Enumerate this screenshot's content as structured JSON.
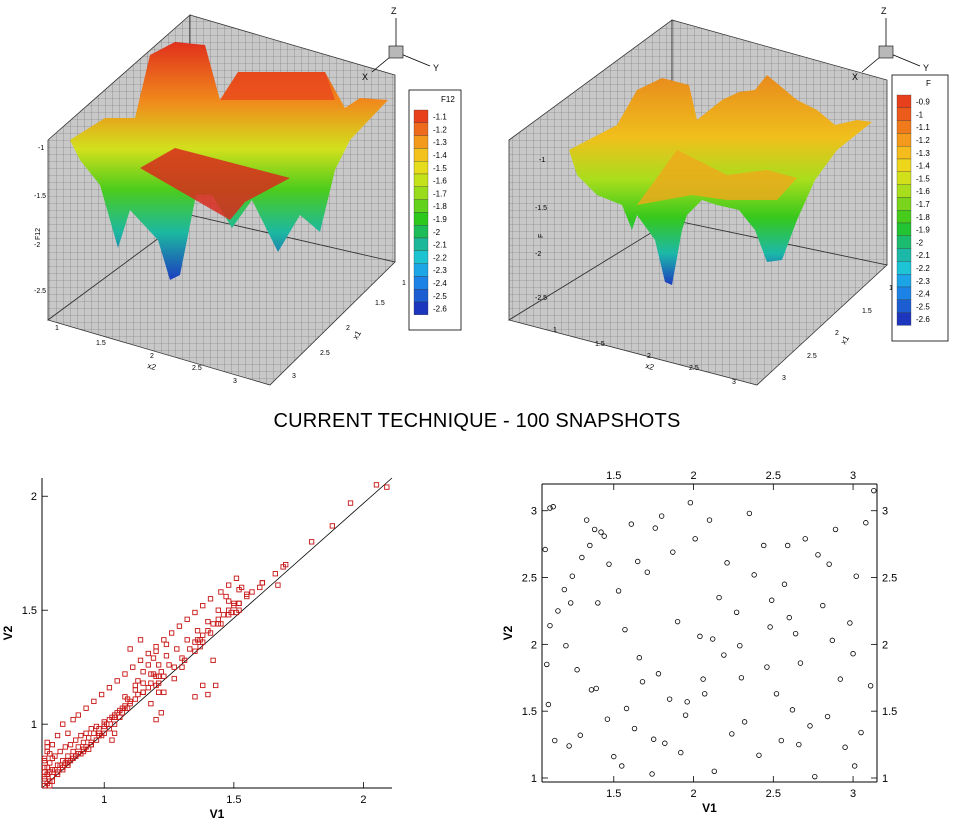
{
  "page_title": "CURRENT TECHNIQUE - 100 SNAPSHOTS",
  "chart_data": [
    {
      "type": "surface",
      "id": "surface-left",
      "xlabel": "x2",
      "ylabel": "x1",
      "zlabel": "F12",
      "x_ticks": [
        "1",
        "1.5",
        "2",
        "2.5",
        "3"
      ],
      "y_ticks": [
        "1",
        "1.5",
        "2",
        "2.5",
        "3"
      ],
      "z_ticks": [
        "-1",
        "-1.5",
        "-2",
        "-2.5"
      ],
      "axis_letters": {
        "z": "Z",
        "x": "X",
        "y": "Y"
      },
      "legend_title": "F12",
      "legend_levels": [
        "-1.1",
        "-1.2",
        "-1.3",
        "-1.4",
        "-1.5",
        "-1.6",
        "-1.7",
        "-1.8",
        "-1.9",
        "-2",
        "-2.1",
        "-2.2",
        "-2.3",
        "-2.4",
        "-2.5",
        "-2.6"
      ],
      "legend_colors": [
        "#e8401c",
        "#ee6a1c",
        "#f39a1c",
        "#f4c21c",
        "#e4dc1c",
        "#c4e21c",
        "#98dc1c",
        "#62d21c",
        "#2cc81c",
        "#1cbc58",
        "#1cb89a",
        "#1cc4d2",
        "#1ca6e6",
        "#1c82e6",
        "#1c5ed2",
        "#1c36be"
      ]
    },
    {
      "type": "surface",
      "id": "surface-right",
      "xlabel": "x2",
      "ylabel": "x1",
      "zlabel": "F",
      "x_ticks": [
        "1",
        "1.5",
        "2",
        "2.5",
        "3"
      ],
      "y_ticks": [
        "1",
        "1.5",
        "2",
        "2.5",
        "3"
      ],
      "z_ticks": [
        "-1",
        "-1.5",
        "-2",
        "-2.5"
      ],
      "axis_letters": {
        "z": "Z",
        "x": "X",
        "y": "Y"
      },
      "legend_title": "F",
      "legend_levels": [
        "-0.9",
        "-1",
        "-1.1",
        "-1.2",
        "-1.3",
        "-1.4",
        "-1.5",
        "-1.6",
        "-1.7",
        "-1.8",
        "-1.9",
        "-2",
        "-2.1",
        "-2.2",
        "-2.3",
        "-2.4",
        "-2.5",
        "-2.6"
      ],
      "legend_colors": [
        "#e8401c",
        "#ec5a1c",
        "#f07a1c",
        "#f39a1c",
        "#f4bc1c",
        "#eed61c",
        "#d2e01c",
        "#a8de1c",
        "#7ad41c",
        "#48cc1c",
        "#22c434",
        "#1cbc70",
        "#1cb8a8",
        "#1cc4d6",
        "#1ca4e6",
        "#1c82e6",
        "#1c5ed2",
        "#1c36be"
      ]
    },
    {
      "type": "scatter",
      "id": "scatter-left",
      "xlabel": "V1",
      "ylabel": "V2",
      "xlim": [
        0.76,
        2.11
      ],
      "ylim": [
        0.72,
        2.08
      ],
      "x_ticks": [
        1,
        1.5,
        2
      ],
      "y_ticks": [
        1,
        1.5,
        2
      ],
      "marker": "square",
      "marker_color": "#c81414",
      "fit_line": {
        "x": [
          0.76,
          2.11
        ],
        "y": [
          0.72,
          2.08
        ]
      },
      "x": [
        2.05,
        2.09,
        1.95,
        1.88,
        1.8,
        1.69,
        1.66,
        1.7,
        1.61,
        1.61,
        1.67,
        1.55,
        1.52,
        1.5,
        1.48,
        1.46,
        1.44,
        1.42,
        1.4,
        1.38,
        1.36,
        1.35,
        1.33,
        1.3,
        1.25,
        1.22,
        1.2,
        1.18,
        1.17,
        1.15,
        1.13,
        1.1,
        1.08,
        1.06,
        1.04,
        1.02,
        1.0,
        0.98,
        0.96,
        0.94,
        0.92,
        0.9,
        0.88,
        0.86,
        0.84,
        0.82,
        0.8,
        0.78,
        0.77,
        0.77,
        0.78,
        0.79,
        0.8,
        0.81,
        0.83,
        0.85,
        0.87,
        0.89,
        0.91,
        0.93,
        0.95,
        0.97,
        1.0,
        1.03,
        1.05,
        1.08,
        1.1,
        1.12,
        1.15,
        1.2,
        1.23,
        1.27,
        1.31,
        1.35,
        1.38,
        1.41,
        1.45,
        1.48,
        1.5,
        1.52,
        1.55,
        1.57,
        1.6,
        1.37,
        1.42,
        1.4,
        1.43,
        1.51,
        1.52,
        1.47,
        1.49,
        1.44,
        1.37,
        1.3,
        1.27,
        1.23,
        1.21,
        1.2,
        1.19,
        1.17,
        1.15,
        1.13,
        1.12,
        1.09,
        1.07,
        1.06,
        1.04,
        1.02,
        1.0,
        0.99,
        0.97,
        0.95,
        0.93,
        0.92,
        0.9,
        0.88,
        0.86,
        0.85,
        0.83,
        0.81,
        0.79,
        0.78,
        0.77,
        0.77,
        0.77,
        0.78,
        0.78,
        0.79,
        0.8,
        0.82,
        0.84,
        0.86,
        0.89,
        0.92,
        0.95,
        0.98,
        1.01,
        1.04,
        1.07,
        1.09,
        1.12,
        1.15,
        1.18,
        1.21,
        1.24,
        1.28,
        1.32,
        1.36,
        1.4,
        1.44,
        1.48,
        1.52,
        1.35,
        1.38,
        1.22,
        1.21,
        1.19,
        1.18,
        1.21,
        1.2,
        1.24,
        1.14,
        1.1,
        1.08,
        1.04,
        1.03,
        1.0,
        0.98,
        0.95,
        0.94,
        0.91,
        0.89,
        0.87,
        0.86,
        0.84,
        0.82,
        0.8,
        0.79,
        0.78,
        0.77,
        0.77,
        0.78,
        0.79,
        0.8,
        0.82,
        0.84,
        0.86,
        0.88,
        0.9,
        0.93,
        0.96,
        0.99,
        1.02,
        1.05,
        1.08,
        1.11,
        1.14,
        1.17,
        1.2,
        1.23,
        1.26,
        1.29,
        1.32,
        1.35,
        1.38,
        1.41,
        1.45,
        1.48,
        1.51,
        1.53
      ],
      "y": [
        2.05,
        2.04,
        1.97,
        1.87,
        1.8,
        1.69,
        1.66,
        1.7,
        1.62,
        1.62,
        1.61,
        1.57,
        1.53,
        1.52,
        1.5,
        1.48,
        1.46,
        1.44,
        1.41,
        1.39,
        1.37,
        1.36,
        1.33,
        1.29,
        1.26,
        1.23,
        1.21,
        1.18,
        1.16,
        1.14,
        1.13,
        1.1,
        1.08,
        1.06,
        1.04,
        1.02,
        1.0,
        0.98,
        0.96,
        0.94,
        0.92,
        0.9,
        0.88,
        0.86,
        0.84,
        0.82,
        0.8,
        0.78,
        0.76,
        0.79,
        0.81,
        0.83,
        0.85,
        0.86,
        0.88,
        0.9,
        0.91,
        0.93,
        0.95,
        0.96,
        0.98,
        0.99,
        1.01,
        1.03,
        1.05,
        1.07,
        1.09,
        1.11,
        1.14,
        1.17,
        1.21,
        1.25,
        1.28,
        1.32,
        1.36,
        1.4,
        1.44,
        1.48,
        1.53,
        1.53,
        1.56,
        1.58,
        1.6,
        1.34,
        1.28,
        1.13,
        1.17,
        1.49,
        1.5,
        1.56,
        1.49,
        1.44,
        1.37,
        1.25,
        1.2,
        1.14,
        1.21,
        1.32,
        1.29,
        1.26,
        1.23,
        1.19,
        1.17,
        1.07,
        1.05,
        1.03,
        1.0,
        0.98,
        0.96,
        0.95,
        0.93,
        0.91,
        0.9,
        0.88,
        0.87,
        0.85,
        0.84,
        0.83,
        0.82,
        0.8,
        0.79,
        0.78,
        0.77,
        0.81,
        0.85,
        0.88,
        0.92,
        0.73,
        0.75,
        0.78,
        0.8,
        0.83,
        0.86,
        0.89,
        0.92,
        0.96,
        1.0,
        1.03,
        1.07,
        1.11,
        1.15,
        1.18,
        1.22,
        1.26,
        1.3,
        1.33,
        1.37,
        1.41,
        1.45,
        1.5,
        1.54,
        1.59,
        1.12,
        1.17,
        1.05,
        1.18,
        1.22,
        1.09,
        1.14,
        1.02,
        1.35,
        1.37,
        1.33,
        1.12,
        0.96,
        0.93,
        0.99,
        0.95,
        0.91,
        0.89,
        0.87,
        0.86,
        0.84,
        0.82,
        0.81,
        0.79,
        0.77,
        0.75,
        0.74,
        0.73,
        0.84,
        0.9,
        0.87,
        0.91,
        0.95,
        1.0,
        0.96,
        1.02,
        1.04,
        1.07,
        1.1,
        1.13,
        1.16,
        1.19,
        1.22,
        1.25,
        1.28,
        1.31,
        1.34,
        1.37,
        1.4,
        1.43,
        1.46,
        1.49,
        1.52,
        1.55,
        1.58,
        1.61,
        1.64,
        1.6
      ]
    },
    {
      "type": "scatter",
      "id": "scatter-right",
      "xlabel": "V1",
      "ylabel": "V2",
      "xlim": [
        1.05,
        3.15
      ],
      "ylim": [
        0.97,
        3.2
      ],
      "x_ticks": [
        1.5,
        2,
        2.5,
        3
      ],
      "y_ticks": [
        1,
        1.5,
        2,
        2.5,
        3
      ],
      "marker": "circle",
      "marker_color": "#000000",
      "x": [
        1.1,
        1.12,
        1.07,
        1.08,
        1.15,
        1.1,
        1.09,
        1.13,
        1.19,
        1.2,
        1.24,
        1.22,
        1.27,
        1.29,
        1.3,
        1.33,
        1.36,
        1.39,
        1.4,
        1.38,
        1.44,
        1.46,
        1.47,
        1.5,
        1.55,
        1.53,
        1.57,
        1.61,
        1.63,
        1.66,
        1.68,
        1.71,
        1.74,
        1.76,
        1.78,
        1.8,
        1.82,
        1.85,
        1.87,
        1.9,
        1.92,
        1.95,
        1.98,
        2.01,
        2.04,
        2.07,
        2.1,
        2.13,
        2.16,
        2.19,
        2.21,
        2.24,
        2.27,
        2.3,
        2.32,
        2.35,
        2.38,
        2.41,
        2.44,
        2.46,
        2.49,
        2.52,
        2.55,
        2.57,
        2.6,
        2.62,
        2.64,
        2.67,
        2.7,
        2.73,
        2.76,
        2.78,
        2.81,
        2.84,
        2.87,
        2.89,
        2.92,
        2.95,
        2.98,
        3.0,
        3.02,
        3.05,
        3.08,
        3.11,
        3.13,
        1.23,
        1.42,
        1.58,
        1.75,
        1.96,
        2.12,
        2.29,
        2.48,
        2.66,
        2.85,
        3.01,
        1.35,
        1.65,
        2.06,
        2.59
      ],
      "y": [
        3.02,
        3.03,
        2.71,
        1.85,
        2.25,
        2.14,
        1.55,
        1.28,
        2.41,
        1.99,
        2.51,
        1.24,
        1.81,
        1.32,
        2.65,
        2.93,
        1.66,
        1.67,
        2.31,
        2.86,
        2.81,
        1.44,
        2.6,
        1.16,
        1.09,
        2.4,
        2.11,
        2.9,
        1.37,
        1.9,
        1.72,
        2.54,
        1.03,
        2.87,
        1.78,
        2.96,
        1.26,
        1.59,
        2.69,
        2.17,
        1.19,
        1.47,
        3.06,
        2.79,
        2.06,
        1.63,
        2.93,
        1.05,
        2.35,
        1.92,
        2.61,
        1.33,
        2.24,
        1.75,
        1.42,
        2.98,
        2.52,
        1.17,
        2.74,
        1.83,
        2.33,
        1.63,
        1.28,
        2.45,
        2.2,
        1.51,
        2.08,
        1.86,
        2.79,
        1.39,
        1.01,
        2.67,
        2.29,
        1.46,
        2.03,
        2.86,
        1.74,
        1.23,
        2.16,
        1.93,
        2.51,
        1.34,
        2.91,
        1.69,
        3.15,
        2.31,
        2.84,
        1.52,
        1.29,
        1.57,
        2.04,
        1.99,
        2.13,
        1.25,
        2.6,
        1.09,
        2.74,
        2.62,
        1.74,
        2.74
      ]
    }
  ]
}
